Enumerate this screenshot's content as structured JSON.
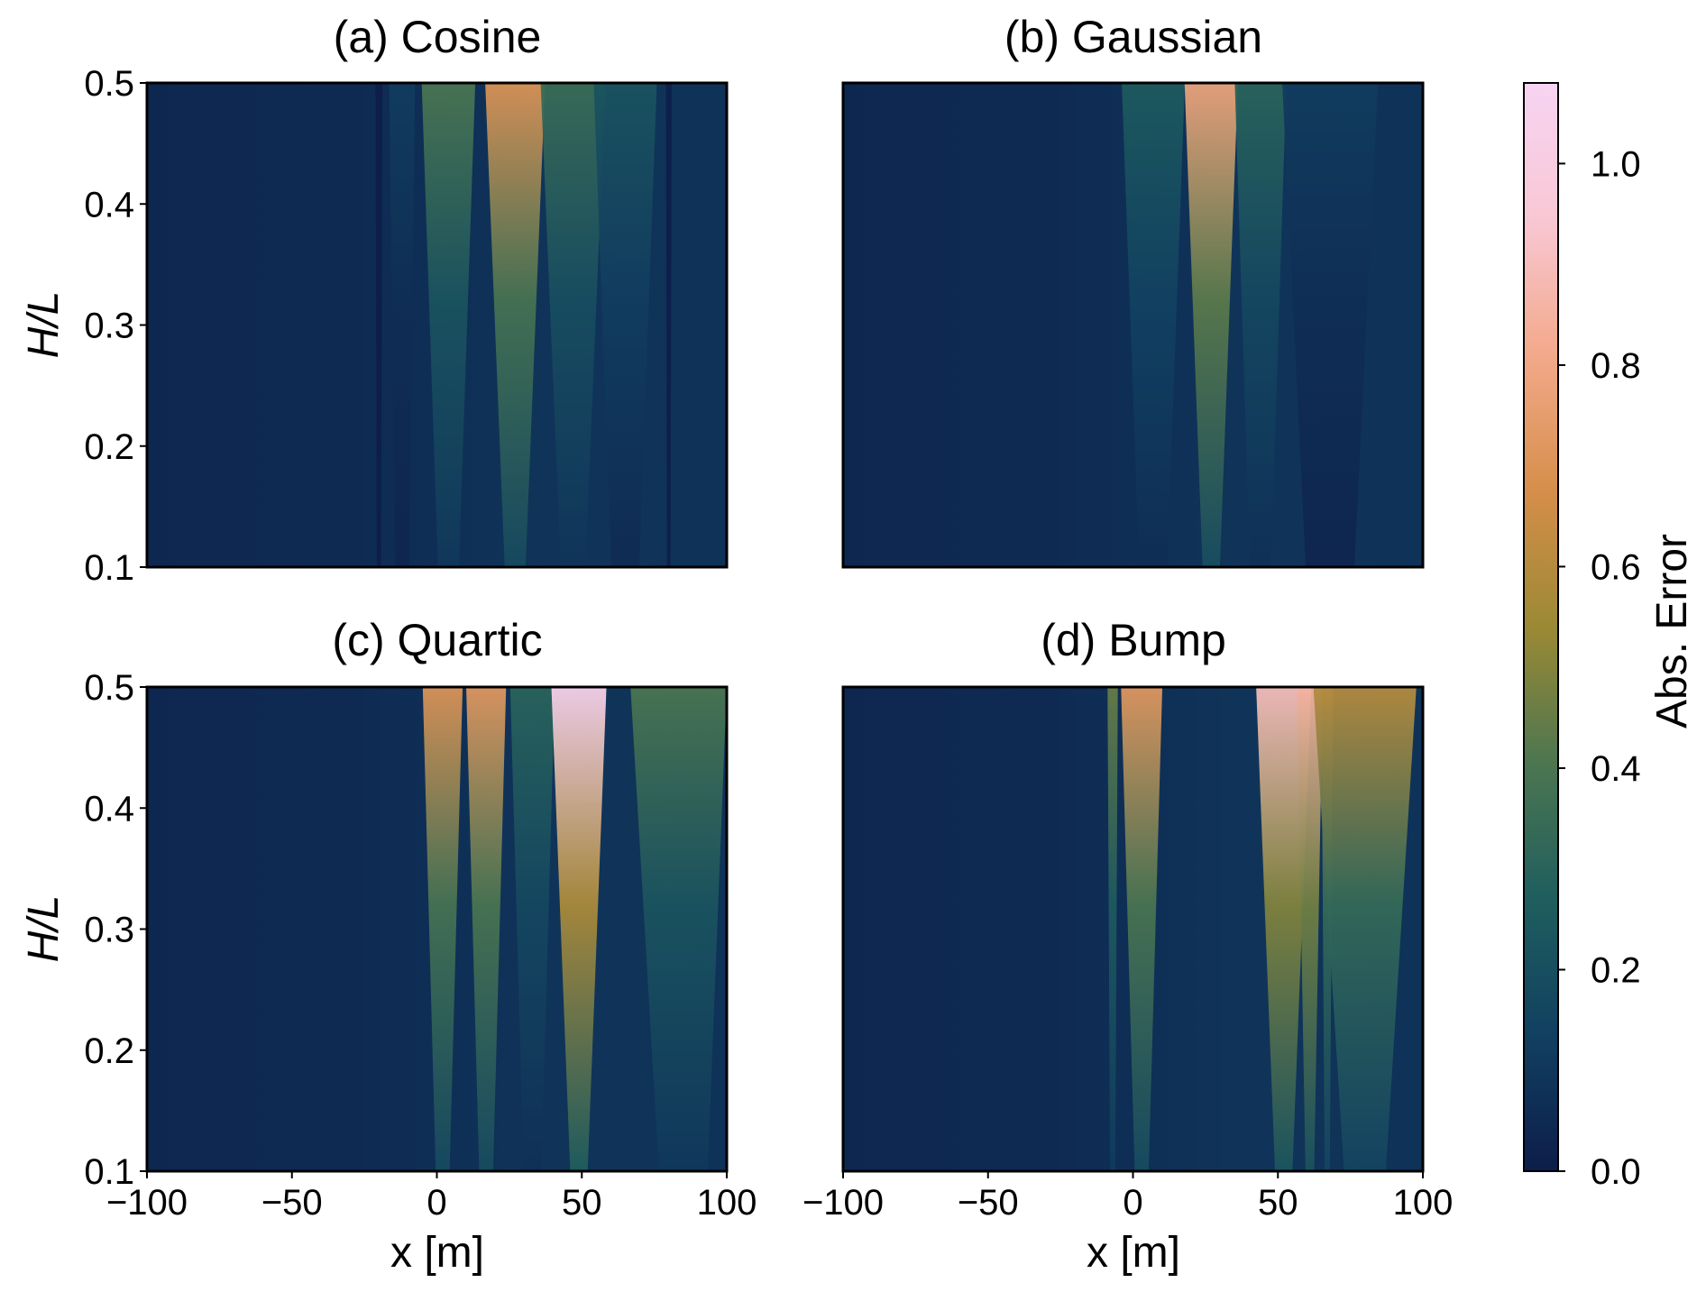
{
  "chart_data": [
    {
      "type": "heatmap",
      "title": "(a) Cosine",
      "xlabel": "",
      "ylabel": "H/L",
      "xlim": [
        -100,
        100
      ],
      "ylim": [
        0.1,
        0.5
      ],
      "xticks": [
        "−100",
        "−50",
        "0",
        "50",
        "100"
      ],
      "yticks": [
        "0.1",
        "0.2",
        "0.3",
        "0.4",
        "0.5"
      ],
      "show_xticklabels": false,
      "show_yticklabels": true,
      "bands": [
        {
          "x": -20,
          "w": 1.2,
          "amp": 0.04,
          "grow": 0.0,
          "kind": "dark"
        },
        {
          "x": -12,
          "w": 4,
          "amp": 0.12,
          "grow": 0.2,
          "kind": "bright"
        },
        {
          "x": 4,
          "w": 6,
          "amp": 0.4,
          "grow": 0.9,
          "kind": "bright"
        },
        {
          "x": 27,
          "w": 6,
          "amp": 0.7,
          "grow": 1.2,
          "kind": "bright"
        },
        {
          "x": 47,
          "w": 7,
          "amp": 0.35,
          "grow": 1.0,
          "kind": "bright"
        },
        {
          "x": 65,
          "w": 8,
          "amp": 0.22,
          "grow": 0.6,
          "kind": "bright"
        },
        {
          "x": 80,
          "w": 1.0,
          "amp": 0.06,
          "grow": 0.0,
          "kind": "dark"
        }
      ]
    },
    {
      "type": "heatmap",
      "title": "(b) Gaussian",
      "xlabel": "",
      "ylabel": "",
      "xlim": [
        -100,
        100
      ],
      "ylim": [
        0.1,
        0.5
      ],
      "xticks": [
        "−100",
        "−50",
        "0",
        "50",
        "100"
      ],
      "yticks": [
        "0.1",
        "0.2",
        "0.3",
        "0.4",
        "0.5"
      ],
      "show_xticklabels": false,
      "show_yticklabels": false,
      "bands": [
        {
          "x": 7,
          "w": 8,
          "amp": 0.25,
          "grow": 0.6,
          "kind": "bright"
        },
        {
          "x": 27,
          "w": 5,
          "amp": 0.78,
          "grow": 1.4,
          "kind": "bright"
        },
        {
          "x": 44,
          "w": 6,
          "amp": 0.3,
          "grow": 0.8,
          "kind": "bright"
        },
        {
          "x": 68,
          "w": 14,
          "amp": 0.12,
          "grow": 0.3,
          "kind": "bright"
        }
      ]
    },
    {
      "type": "heatmap",
      "title": "(c) Quartic",
      "xlabel": "x [m]",
      "ylabel": "H/L",
      "xlim": [
        -100,
        100
      ],
      "ylim": [
        0.1,
        0.5
      ],
      "xticks": [
        "−100",
        "−50",
        "0",
        "50",
        "100"
      ],
      "yticks": [
        "0.1",
        "0.2",
        "0.3",
        "0.4",
        "0.5"
      ],
      "show_xticklabels": true,
      "show_yticklabels": true,
      "bands": [
        {
          "x": 2,
          "w": 4,
          "amp": 0.7,
          "grow": 1.2,
          "kind": "bright"
        },
        {
          "x": 17,
          "w": 4,
          "amp": 0.72,
          "grow": 1.2,
          "kind": "bright"
        },
        {
          "x": 33,
          "w": 5,
          "amp": 0.3,
          "grow": 0.9,
          "kind": "bright"
        },
        {
          "x": 49,
          "w": 5,
          "amp": 1.05,
          "grow": 1.5,
          "kind": "bright"
        },
        {
          "x": 85,
          "w": 14,
          "amp": 0.4,
          "grow": 0.5,
          "kind": "bright"
        }
      ]
    },
    {
      "type": "heatmap",
      "title": "(d) Bump",
      "xlabel": "x [m]",
      "ylabel": "",
      "xlim": [
        -100,
        100
      ],
      "ylim": [
        0.1,
        0.5
      ],
      "xticks": [
        "−100",
        "−50",
        "0",
        "50",
        "100"
      ],
      "yticks": [
        "0.1",
        "0.2",
        "0.3",
        "0.4",
        "0.5"
      ],
      "show_xticklabels": true,
      "show_yticklabels": false,
      "bands": [
        {
          "x": -7,
          "w": 1.5,
          "amp": 0.45,
          "grow": 0.3,
          "kind": "bright"
        },
        {
          "x": 3,
          "w": 4,
          "amp": 0.72,
          "grow": 1.3,
          "kind": "bright"
        },
        {
          "x": 52,
          "w": 5,
          "amp": 0.9,
          "grow": 1.5,
          "kind": "bright"
        },
        {
          "x": 61,
          "w": 2.5,
          "amp": 0.85,
          "grow": 1.3,
          "kind": "bright"
        },
        {
          "x": 67,
          "w": 1.5,
          "amp": 0.6,
          "grow": 0.6,
          "kind": "bright"
        },
        {
          "x": 80,
          "w": 12,
          "amp": 0.6,
          "grow": 0.8,
          "kind": "bright"
        }
      ]
    }
  ],
  "colorbar": {
    "label": "Abs. Error",
    "range": [
      0.0,
      1.08
    ],
    "ticks": [
      "0.0",
      "0.2",
      "0.4",
      "0.6",
      "0.8",
      "1.0"
    ],
    "tick_values": [
      0.0,
      0.2,
      0.4,
      0.6,
      0.8,
      1.0
    ],
    "colors": [
      "#0d1d4a",
      "#114061",
      "#1f5e5e",
      "#4c7650",
      "#9b8934",
      "#d68e4a",
      "#f3a98a",
      "#f8c7d4",
      "#f7d4f2"
    ]
  }
}
